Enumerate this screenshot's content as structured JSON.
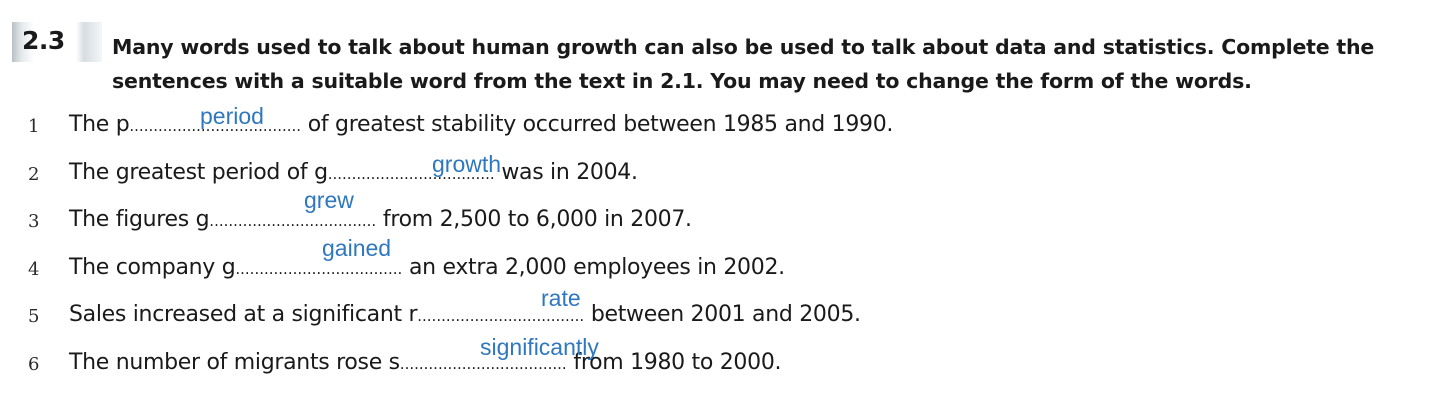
{
  "exercise": {
    "number": "2.3",
    "instruction_line1": "Many words used to talk about human growth can also be used to talk about data and statistics. Complete the",
    "instruction_line2": "sentences with a suitable word from the text in 2.1. You may need to change the form of the words."
  },
  "items": [
    {
      "number": "1",
      "before": "The p",
      "dots": "....................................",
      "after": " of greatest stability occurred between 1985 and 1990.",
      "answer": "period"
    },
    {
      "number": "2",
      "before": "The greatest period of g",
      "dots": "...................................",
      "after": " was in 2004.",
      "answer": "growth"
    },
    {
      "number": "3",
      "before": "The figures g",
      "dots": "...................................",
      "after": " from 2,500 to 6,000 in 2007.",
      "answer": "grew"
    },
    {
      "number": "4",
      "before": "The company g",
      "dots": "...................................",
      "after": " an extra 2,000 employees in 2002.",
      "answer": "gained"
    },
    {
      "number": "5",
      "before": "Sales increased at a significant r",
      "dots": "...................................",
      "after": " between 2001 and 2005.",
      "answer": "rate"
    },
    {
      "number": "6",
      "before": "The number of migrants rose s",
      "dots": "...................................",
      "after": " from 1980 to 2000.",
      "answer": "significantly"
    }
  ]
}
